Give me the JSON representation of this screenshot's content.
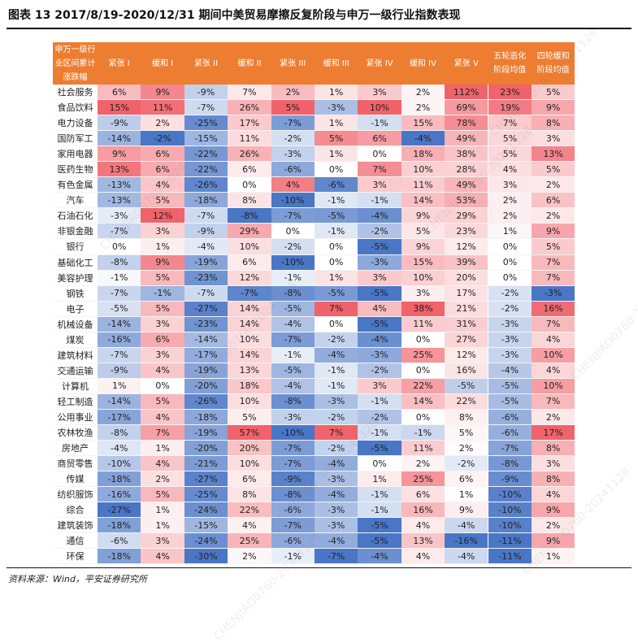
{
  "title": "图表 13    2017/8/19-2020/12/31 期间中美贸易摩擦反复阶段与申万一级行业指数表现",
  "source": "资料来源：Wind，平安证券研究所",
  "columns": {
    "industry": [
      "申万一级行",
      "业区间累计",
      "涨跌幅"
    ],
    "phases": [
      [
        "紧张 I"
      ],
      [
        "缓和 I"
      ],
      [
        "紧张 II"
      ],
      [
        "缓和 II"
      ],
      [
        "紧张 III"
      ],
      [
        "缓和 III"
      ],
      [
        "紧张 IV"
      ],
      [
        "缓和 IV"
      ],
      [
        "紧张 V"
      ],
      [
        "五轮恶化",
        "阶段均值"
      ],
      [
        "四轮缓和",
        "阶段均值"
      ]
    ]
  },
  "rows": [
    {
      "name": "社会服务",
      "values": [
        "6%",
        "9%",
        "-9%",
        "7%",
        "2%",
        "1%",
        "3%",
        "2%",
        "112%",
        "23%",
        "5%"
      ]
    },
    {
      "name": "食品饮料",
      "values": [
        "15%",
        "11%",
        "-7%",
        "26%",
        "5%",
        "-3%",
        "10%",
        "2%",
        "69%",
        "19%",
        "9%"
      ]
    },
    {
      "name": "电力设备",
      "values": [
        "-9%",
        "2%",
        "-25%",
        "17%",
        "-7%",
        "1%",
        "-1%",
        "15%",
        "78%",
        "7%",
        "8%"
      ]
    },
    {
      "name": "国防军工",
      "values": [
        "-14%",
        "-2%",
        "-15%",
        "11%",
        "-2%",
        "5%",
        "6%",
        "-4%",
        "49%",
        "5%",
        "3%"
      ]
    },
    {
      "name": "家用电器",
      "values": [
        "9%",
        "6%",
        "-22%",
        "26%",
        "-3%",
        "1%",
        "0%",
        "18%",
        "38%",
        "5%",
        "13%"
      ]
    },
    {
      "name": "医药生物",
      "values": [
        "13%",
        "6%",
        "-22%",
        "6%",
        "-6%",
        "0%",
        "7%",
        "10%",
        "28%",
        "4%",
        "5%"
      ]
    },
    {
      "name": "有色金属",
      "values": [
        "-13%",
        "4%",
        "-26%",
        "0%",
        "4%",
        "-6%",
        "3%",
        "11%",
        "49%",
        "3%",
        "2%"
      ]
    },
    {
      "name": "汽车",
      "values": [
        "-13%",
        "5%",
        "-18%",
        "8%",
        "-10%",
        "-1%",
        "-1%",
        "14%",
        "53%",
        "2%",
        "6%"
      ]
    },
    {
      "name": "石油石化",
      "values": [
        "-3%",
        "12%",
        "-7%",
        "-8%",
        "-7%",
        "-5%",
        "-4%",
        "9%",
        "29%",
        "2%",
        "2%"
      ]
    },
    {
      "name": "非银金融",
      "values": [
        "-7%",
        "3%",
        "-9%",
        "29%",
        "0%",
        "-1%",
        "-2%",
        "5%",
        "23%",
        "1%",
        "9%"
      ]
    },
    {
      "name": "银行",
      "values": [
        "0%",
        "1%",
        "-4%",
        "10%",
        "-2%",
        "0%",
        "-5%",
        "9%",
        "12%",
        "0%",
        "5%"
      ]
    },
    {
      "name": "基础化工",
      "values": [
        "-8%",
        "9%",
        "-19%",
        "6%",
        "-10%",
        "0%",
        "-3%",
        "15%",
        "39%",
        "0%",
        "7%"
      ]
    },
    {
      "name": "美容护理",
      "values": [
        "-1%",
        "5%",
        "-23%",
        "12%",
        "-1%",
        "1%",
        "3%",
        "10%",
        "20%",
        "0%",
        "7%"
      ]
    },
    {
      "name": "钢铁",
      "values": [
        "-7%",
        "-1%",
        "-7%",
        "-7%",
        "-8%",
        "-5%",
        "-5%",
        "3%",
        "17%",
        "-2%",
        "-3%"
      ]
    },
    {
      "name": "电子",
      "values": [
        "-5%",
        "5%",
        "-27%",
        "14%",
        "-5%",
        "7%",
        "4%",
        "38%",
        "21%",
        "-2%",
        "16%"
      ]
    },
    {
      "name": "机械设备",
      "values": [
        "-14%",
        "3%",
        "-23%",
        "14%",
        "-4%",
        "0%",
        "-5%",
        "11%",
        "31%",
        "-3%",
        "7%"
      ]
    },
    {
      "name": "煤炭",
      "values": [
        "-16%",
        "6%",
        "-14%",
        "10%",
        "-7%",
        "-2%",
        "-4%",
        "0%",
        "27%",
        "-3%",
        "4%"
      ]
    },
    {
      "name": "建筑材料",
      "values": [
        "-7%",
        "3%",
        "-17%",
        "14%",
        "-1%",
        "-4%",
        "-3%",
        "25%",
        "12%",
        "-3%",
        "10%"
      ]
    },
    {
      "name": "交通运输",
      "values": [
        "-9%",
        "4%",
        "-19%",
        "13%",
        "-5%",
        "-1%",
        "-2%",
        "0%",
        "16%",
        "-4%",
        "4%"
      ]
    },
    {
      "name": "计算机",
      "values": [
        "1%",
        "0%",
        "-20%",
        "18%",
        "-4%",
        "-1%",
        "3%",
        "22%",
        "-5%",
        "-5%",
        "10%"
      ]
    },
    {
      "name": "轻工制造",
      "values": [
        "-14%",
        "5%",
        "-26%",
        "10%",
        "-8%",
        "-3%",
        "-1%",
        "14%",
        "22%",
        "-5%",
        "7%"
      ]
    },
    {
      "name": "公用事业",
      "values": [
        "-17%",
        "4%",
        "-18%",
        "5%",
        "-3%",
        "-2%",
        "-2%",
        "0%",
        "8%",
        "-6%",
        "2%"
      ]
    },
    {
      "name": "农林牧渔",
      "values": [
        "-8%",
        "7%",
        "-19%",
        "57%",
        "-10%",
        "7%",
        "-1%",
        "-1%",
        "5%",
        "-6%",
        "17%"
      ]
    },
    {
      "name": "房地产",
      "values": [
        "-4%",
        "1%",
        "-20%",
        "20%",
        "-7%",
        "-2%",
        "-5%",
        "11%",
        "2%",
        "-7%",
        "8%"
      ]
    },
    {
      "name": "商贸零售",
      "values": [
        "-10%",
        "4%",
        "-21%",
        "10%",
        "-7%",
        "-4%",
        "0%",
        "2%",
        "-2%",
        "-8%",
        "3%"
      ]
    },
    {
      "name": "传媒",
      "values": [
        "-18%",
        "2%",
        "-27%",
        "6%",
        "-9%",
        "-3%",
        "1%",
        "25%",
        "6%",
        "-9%",
        "8%"
      ]
    },
    {
      "name": "纺织服饰",
      "values": [
        "-16%",
        "5%",
        "-25%",
        "8%",
        "-8%",
        "-4%",
        "-1%",
        "6%",
        "1%",
        "-10%",
        "4%"
      ]
    },
    {
      "name": "综合",
      "values": [
        "-27%",
        "1%",
        "-24%",
        "22%",
        "-6%",
        "-3%",
        "-1%",
        "16%",
        "9%",
        "-10%",
        "9%"
      ]
    },
    {
      "name": "建筑装饰",
      "values": [
        "-18%",
        "1%",
        "-15%",
        "4%",
        "-7%",
        "-3%",
        "-5%",
        "4%",
        "-4%",
        "-10%",
        "2%"
      ]
    },
    {
      "name": "通信",
      "values": [
        "-6%",
        "3%",
        "-24%",
        "25%",
        "-6%",
        "-4%",
        "-5%",
        "13%",
        "-16%",
        "-11%",
        "9%"
      ]
    },
    {
      "name": "环保",
      "values": [
        "-18%",
        "4%",
        "-30%",
        "2%",
        "-1%",
        "-7%",
        "-4%",
        "4%",
        "-4%",
        "-11%",
        "1%"
      ]
    }
  ],
  "colors": {
    "header_bg": "#ed7d31",
    "negative_strong": "#4a76c6",
    "positive_strong": "#f0636b"
  },
  "watermarks": [
    "CHENJIAO0760-20241128"
  ]
}
